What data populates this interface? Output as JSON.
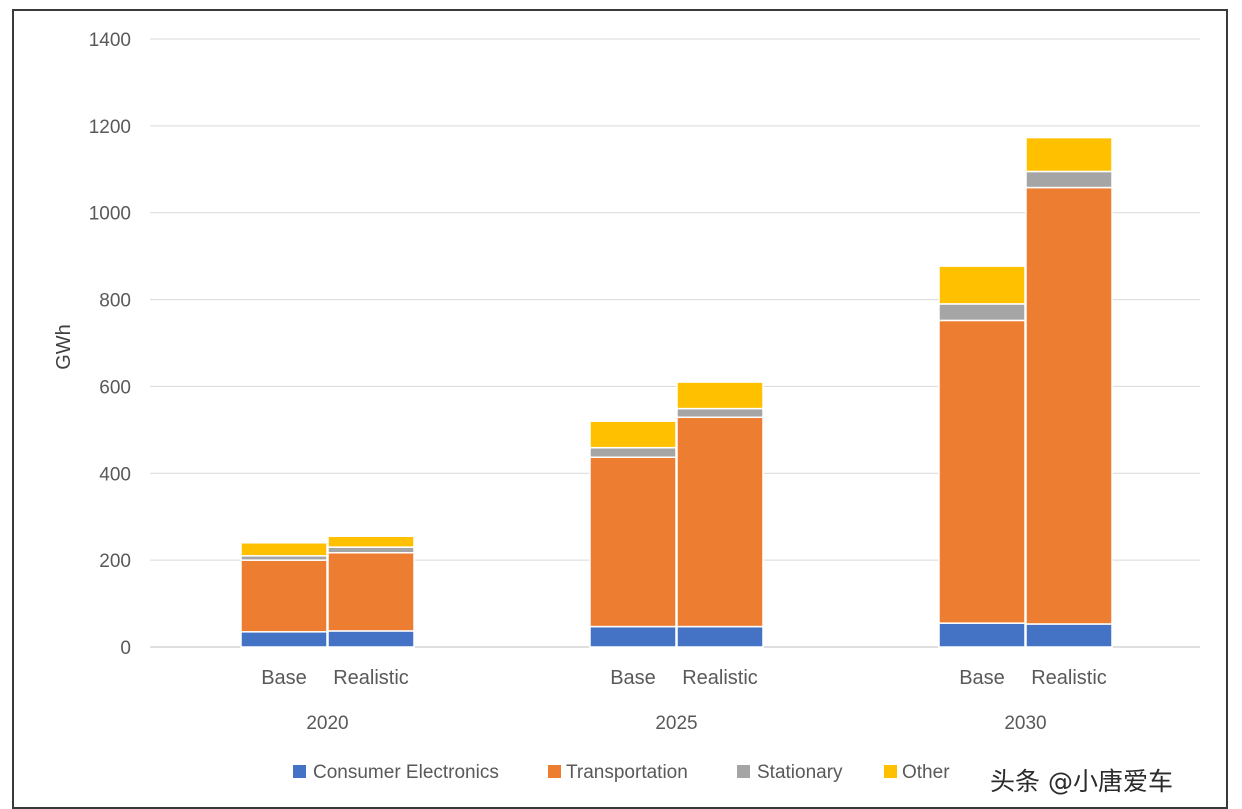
{
  "chart_data": {
    "type": "bar",
    "stacked": true,
    "title": "",
    "xlabel": "",
    "ylabel": "GWh",
    "ylim": [
      0,
      1400
    ],
    "yticks": [
      0,
      200,
      400,
      600,
      800,
      1000,
      1200,
      1400
    ],
    "grid": true,
    "legend_position": "bottom",
    "groups": [
      "2020",
      "2025",
      "2030"
    ],
    "categories": [
      "Base",
      "Realistic",
      "Base",
      "Realistic",
      "Base",
      "Realistic"
    ],
    "category_group": [
      0,
      0,
      1,
      1,
      2,
      2
    ],
    "series": [
      {
        "name": "Consumer Electronics",
        "color": "#4472C4",
        "values": [
          35,
          37,
          47,
          47,
          55,
          53
        ]
      },
      {
        "name": "Transportation",
        "color": "#ED7D31",
        "values": [
          165,
          180,
          390,
          482,
          697,
          1005
        ]
      },
      {
        "name": "Stationary",
        "color": "#A5A5A5",
        "values": [
          10,
          13,
          22,
          20,
          38,
          37
        ]
      },
      {
        "name": "Other",
        "color": "#FFC000",
        "values": [
          30,
          25,
          61,
          61,
          87,
          78
        ]
      }
    ]
  },
  "watermark": "头条 @小唐爱车"
}
